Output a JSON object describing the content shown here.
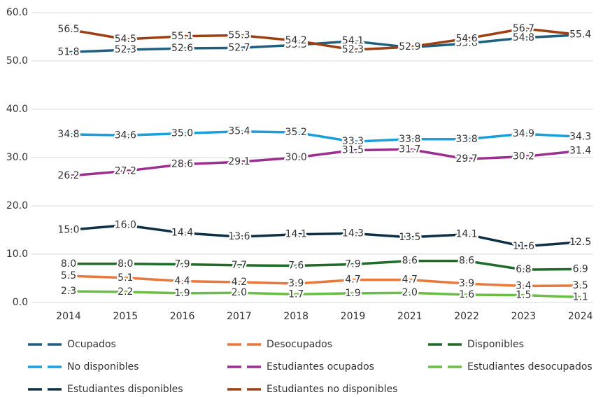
{
  "chart_data": {
    "type": "line",
    "categories": [
      "2014",
      "2015",
      "2016",
      "2017",
      "2018",
      "2019",
      "2021",
      "2022",
      "2023",
      "2024"
    ],
    "ylim": [
      0,
      60
    ],
    "yticks": [
      {
        "value": 0,
        "label": "0.0"
      },
      {
        "value": 10,
        "label": "10.0"
      },
      {
        "value": 20,
        "label": "20.0"
      },
      {
        "value": 30,
        "label": "30.0"
      },
      {
        "value": 40,
        "label": "40.0"
      },
      {
        "value": 50,
        "label": "50.0"
      },
      {
        "value": 60,
        "label": "60.0"
      }
    ],
    "grid": true,
    "legend": "bottom",
    "series": [
      {
        "name": "Ocupados",
        "color": "#1f5f80",
        "values": [
          51.8,
          52.3,
          52.6,
          52.7,
          53.3,
          54.1,
          52.8,
          53.6,
          54.8,
          55.4
        ],
        "value_labels": [
          "51.8",
          "52.3",
          "52.6",
          "52.7",
          "53.3",
          "54.1",
          "52.8",
          "53.6",
          "54.8",
          "55.4"
        ]
      },
      {
        "name": "Desocupados",
        "color": "#e8793b",
        "values": [
          5.5,
          5.1,
          4.4,
          4.2,
          3.9,
          4.7,
          4.7,
          3.9,
          3.4,
          3.5
        ],
        "value_labels": [
          "5.5",
          "5.1",
          "4.4",
          "4.2",
          "3.9",
          "4.7",
          "4.7",
          "3.9",
          "3.4",
          "3.5"
        ]
      },
      {
        "name": "Disponibles",
        "color": "#1e6b2a",
        "values": [
          8.0,
          8.0,
          7.9,
          7.7,
          7.6,
          7.9,
          8.6,
          8.6,
          6.8,
          6.9
        ],
        "value_labels": [
          "8.0",
          "8.0",
          "7.9",
          "7.7",
          "7.6",
          "7.9",
          "8.6",
          "8.6",
          "6.8",
          "6.9"
        ]
      },
      {
        "name": "No disponibles",
        "color": "#1aa0d8",
        "values": [
          34.8,
          34.6,
          35.0,
          35.4,
          35.2,
          33.3,
          33.8,
          33.8,
          34.9,
          34.3
        ],
        "value_labels": [
          "34.8",
          "34.6",
          "35.0",
          "35.4",
          "35.2",
          "33.3",
          "33.8",
          "33.8",
          "34.9",
          "34.3"
        ]
      },
      {
        "name": "Estudiantes ocupados",
        "color": "#9b2f8f",
        "values": [
          26.2,
          27.2,
          28.6,
          29.1,
          30.0,
          31.5,
          31.7,
          29.7,
          30.2,
          31.4
        ],
        "value_labels": [
          "26.2",
          "27.2",
          "28.6",
          "29.1",
          "30.0",
          "31.5",
          "31.7",
          "29.7",
          "30.2",
          "31.4"
        ]
      },
      {
        "name": "Estudiantes desocupados",
        "color": "#6cbd45",
        "values": [
          2.3,
          2.2,
          1.9,
          2.0,
          1.7,
          1.9,
          2.0,
          1.6,
          1.5,
          1.1
        ],
        "value_labels": [
          "2.3",
          "2.2",
          "1.9",
          "2.0",
          "1.7",
          "1.9",
          "2.0",
          "1.6",
          "1.5",
          "1.1"
        ]
      },
      {
        "name": "Estudiantes disponibles",
        "color": "#0d3047",
        "values": [
          15.0,
          16.0,
          14.4,
          13.6,
          14.1,
          14.3,
          13.5,
          14.1,
          11.6,
          12.5
        ],
        "value_labels": [
          "15.0",
          "16.0",
          "14.4",
          "13.6",
          "14.1",
          "14.3",
          "13.5",
          "14.1",
          "11.6",
          "12.5"
        ]
      },
      {
        "name": "Estudiantes no disponibles",
        "color": "#9c3f12",
        "values": [
          56.5,
          54.5,
          55.1,
          55.3,
          54.2,
          52.3,
          52.9,
          54.6,
          56.7,
          55.4
        ],
        "value_labels": [
          "56.5",
          "54.5",
          "55.1",
          "55.3",
          "54.2",
          "52.3",
          "52.9",
          "54.6",
          "56.7",
          null
        ]
      }
    ]
  }
}
